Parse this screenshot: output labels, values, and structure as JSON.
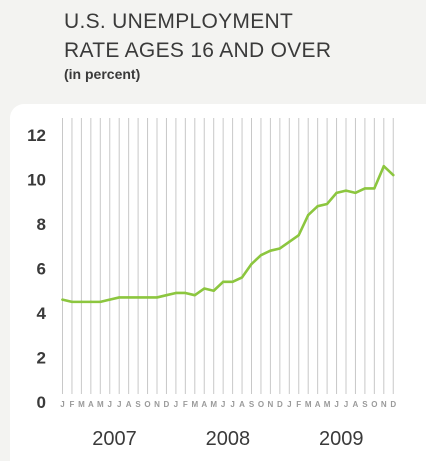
{
  "header": {
    "title_line1": "U.S. UNEMPLOYMENT",
    "title_line2": "RATE AGES 16 AND OVER",
    "subtitle": "(in percent)"
  },
  "chart_data": {
    "type": "line",
    "title": "U.S. UNEMPLOYMENT RATE AGES 16 AND OVER",
    "subtitle": "(in percent)",
    "xlabel": "",
    "ylabel": "",
    "ylim": [
      0,
      12
    ],
    "yticks": [
      "0",
      "2",
      "4",
      "6",
      "8",
      "10",
      "12"
    ],
    "month_labels": [
      "J",
      "F",
      "M",
      "A",
      "M",
      "J",
      "J",
      "A",
      "S",
      "O",
      "N",
      "D",
      "J",
      "F",
      "M",
      "A",
      "M",
      "J",
      "J",
      "A",
      "S",
      "O",
      "N",
      "D",
      "J",
      "F",
      "M",
      "A",
      "M",
      "J",
      "J",
      "A",
      "S",
      "O",
      "N",
      "D"
    ],
    "year_labels": [
      "2007",
      "2008",
      "2009"
    ],
    "grid": "vertical",
    "legend": "none",
    "color": "#8cc63f",
    "series": [
      {
        "values": [
          4.6,
          4.5,
          4.5,
          4.5,
          4.5,
          4.6,
          4.7,
          4.7,
          4.7,
          4.7,
          4.7,
          4.8,
          4.9,
          4.9,
          4.8,
          5.1,
          5.0,
          5.4,
          5.4,
          5.6,
          6.2,
          6.6,
          6.8,
          6.9,
          7.2,
          7.5,
          8.4,
          8.8,
          8.9,
          9.4,
          9.5,
          9.4,
          9.6,
          9.6,
          10.6,
          10.2
        ]
      }
    ]
  }
}
